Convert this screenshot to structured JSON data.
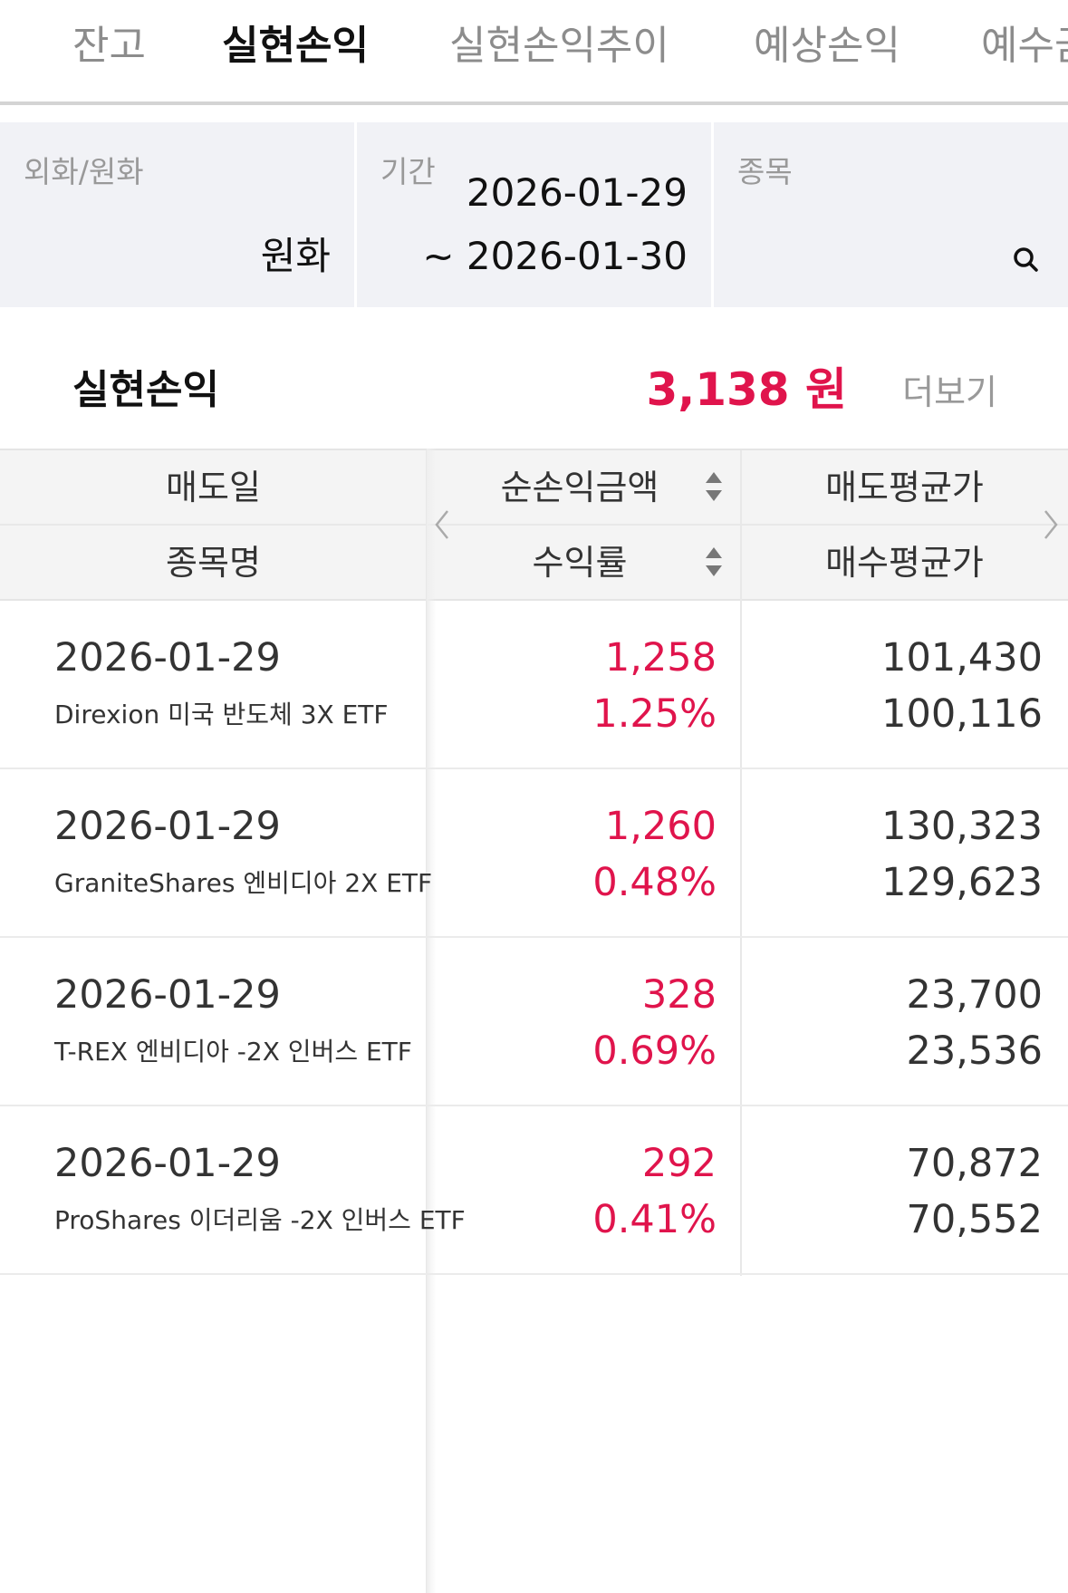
{
  "tabs": [
    {
      "label": "잔고"
    },
    {
      "label": "실현손익",
      "active": true
    },
    {
      "label": "실현손익추이"
    },
    {
      "label": "예상손익"
    },
    {
      "label": "예수금"
    }
  ],
  "filters": {
    "currency_label": "외화/원화",
    "currency_value": "원화",
    "period_label": "기간",
    "period_start": "2026-01-29",
    "period_end": "~ 2026-01-30",
    "stock_label": "종목",
    "search_icon": "search-icon"
  },
  "summary": {
    "title": "실현손익",
    "value": "3,138 원",
    "more": "더보기"
  },
  "table": {
    "headers": {
      "sell_date": "매도일",
      "stock_name": "종목명",
      "net_pnl": "순손익금액",
      "return_rate": "수익률",
      "sell_avg": "매도평균가",
      "buy_avg": "매수평균가"
    },
    "rows": [
      {
        "date": "2026-01-29",
        "name": "Direxion 미국 반도체 3X ETF",
        "pnl": "1,258",
        "rate": "1.25%",
        "sell": "101,430",
        "buy": "100,116"
      },
      {
        "date": "2026-01-29",
        "name": "GraniteShares 엔비디아 2X ETF",
        "pnl": "1,260",
        "rate": "0.48%",
        "sell": "130,323",
        "buy": "129,623"
      },
      {
        "date": "2026-01-29",
        "name": "T-REX 엔비디아 -2X 인버스 ETF",
        "pnl": "328",
        "rate": "0.69%",
        "sell": "23,700",
        "buy": "23,536"
      },
      {
        "date": "2026-01-29",
        "name": "ProShares 이더리움 -2X 인버스 ETF",
        "pnl": "292",
        "rate": "0.41%",
        "sell": "70,872",
        "buy": "70,552"
      }
    ]
  },
  "colors": {
    "profit": "#e0144c",
    "accent": "#111111"
  }
}
